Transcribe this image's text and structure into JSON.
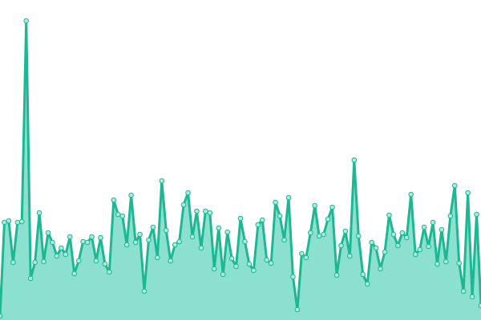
{
  "chart_data": {
    "type": "area",
    "color": "#1db893",
    "fill": "#8ce0cf",
    "marker_fill": "#a9ebdc",
    "ylim": [
      0,
      400
    ],
    "values": [
      5,
      122,
      124,
      72,
      122,
      123,
      374,
      52,
      72,
      134,
      73,
      109,
      97,
      80,
      90,
      82,
      104,
      58,
      74,
      98,
      97,
      104,
      74,
      103,
      70,
      60,
      150,
      132,
      130,
      94,
      156,
      97,
      107,
      36,
      100,
      116,
      78,
      174,
      112,
      74,
      94,
      98,
      144,
      159,
      104,
      136,
      90,
      136,
      134,
      64,
      115,
      57,
      110,
      77,
      67,
      127,
      98,
      70,
      62,
      119,
      125,
      75,
      71,
      147,
      130,
      100,
      153,
      54,
      13,
      83,
      78,
      109,
      143,
      105,
      107,
      126,
      141,
      56,
      93,
      111,
      80,
      200,
      105,
      57,
      45,
      97,
      90,
      64,
      85,
      131,
      107,
      93,
      109,
      103,
      157,
      82,
      88,
      116,
      92,
      122,
      70,
      113,
      73,
      130,
      168,
      71,
      36,
      159,
      29,
      132,
      18
    ]
  }
}
